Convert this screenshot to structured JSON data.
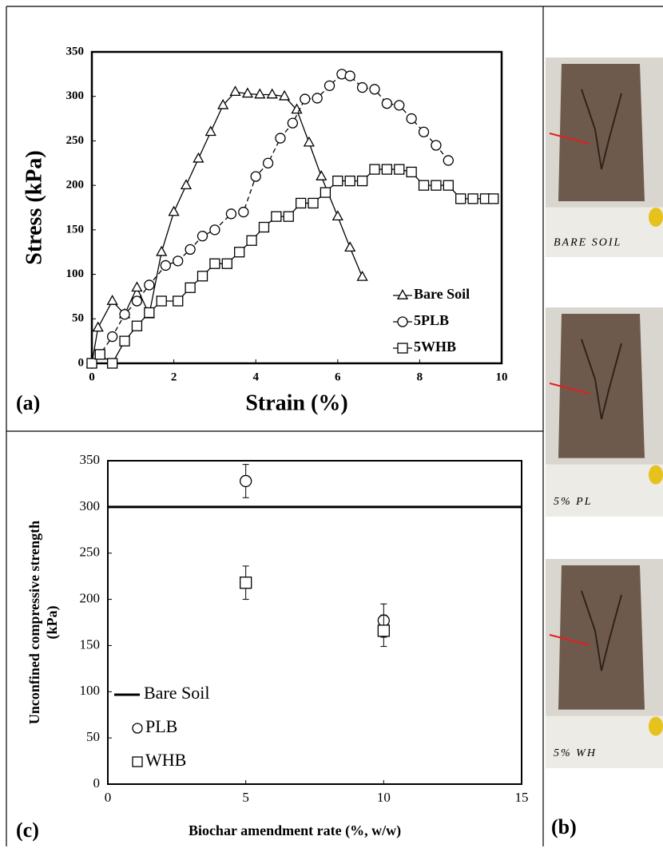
{
  "chart_data": [
    {
      "type": "line",
      "panel_label": "(a)",
      "xlabel": "Strain (%)",
      "ylabel": "Stress (kPa)",
      "xlim": [
        0,
        10
      ],
      "ylim": [
        0,
        350
      ],
      "xticks": [
        0,
        2,
        4,
        6,
        8,
        10
      ],
      "yticks": [
        0,
        50,
        100,
        150,
        200,
        250,
        300,
        350
      ],
      "legend": "lower right",
      "series": [
        {
          "name": "Bare Soil",
          "color": "#000000",
          "marker": "triangle",
          "linestyle": "solid",
          "x": [
            0,
            0.15,
            0.5,
            0.8,
            1.1,
            1.4,
            1.7,
            2,
            2.3,
            2.6,
            2.9,
            3.2,
            3.5,
            3.8,
            4.1,
            4.4,
            4.7,
            5,
            5.3,
            5.6,
            6,
            6.3,
            6.6
          ],
          "values": [
            0,
            40,
            70,
            55,
            85,
            55,
            125,
            170,
            200,
            230,
            260,
            290,
            305,
            303,
            302,
            302,
            300,
            285,
            248,
            210,
            165,
            130,
            97
          ]
        },
        {
          "name": "5PLB",
          "color": "#000000",
          "marker": "circle",
          "linestyle": "dashed",
          "x": [
            0,
            0.2,
            0.5,
            0.8,
            1.1,
            1.4,
            1.8,
            2.1,
            2.4,
            2.7,
            3,
            3.4,
            3.7,
            4,
            4.3,
            4.6,
            4.9,
            5.2,
            5.5,
            5.8,
            6.1,
            6.3,
            6.6,
            6.9,
            7.2,
            7.5,
            7.8,
            8.1,
            8.4,
            8.7
          ],
          "values": [
            0,
            10,
            30,
            55,
            70,
            88,
            110,
            115,
            128,
            143,
            150,
            168,
            170,
            210,
            225,
            253,
            270,
            297,
            298,
            312,
            325,
            323,
            310,
            308,
            292,
            290,
            275,
            260,
            245,
            228
          ]
        },
        {
          "name": "5WHB",
          "color": "#000000",
          "marker": "square",
          "linestyle": "solid",
          "x": [
            0,
            0.2,
            0.5,
            0.8,
            1.1,
            1.4,
            1.7,
            2.1,
            2.4,
            2.7,
            3,
            3.3,
            3.6,
            3.9,
            4.2,
            4.5,
            4.8,
            5.1,
            5.4,
            5.7,
            6,
            6.3,
            6.6,
            6.9,
            7.2,
            7.5,
            7.8,
            8.1,
            8.4,
            8.7,
            9,
            9.3,
            9.6,
            9.8
          ],
          "values": [
            0,
            10,
            0,
            25,
            42,
            57,
            70,
            70,
            85,
            98,
            112,
            112,
            125,
            138,
            153,
            165,
            165,
            180,
            180,
            192,
            205,
            205,
            205,
            218,
            218,
            218,
            215,
            200,
            200,
            200,
            185,
            185,
            185,
            185
          ]
        }
      ]
    },
    {
      "type": "scatter",
      "panel_label": "(c)",
      "xlabel": "Biochar amendment rate (%, w/w)",
      "ylabel": [
        "Unconfined compressive strength",
        "(kPa)"
      ],
      "xlim": [
        0,
        15
      ],
      "ylim": [
        0,
        350
      ],
      "xticks": [
        0,
        5,
        10,
        15
      ],
      "yticks": [
        0,
        50,
        100,
        150,
        200,
        250,
        300,
        350
      ],
      "legend": "lower left",
      "reference_lines": [
        {
          "name": "Bare Soil",
          "value": 300,
          "color": "#000000"
        }
      ],
      "x": [
        5,
        10
      ],
      "series": [
        {
          "name": "PLB",
          "color": "#000000",
          "marker": "circle",
          "values": [
            328,
            177
          ],
          "errors": [
            18,
            18
          ]
        },
        {
          "name": "WHB",
          "color": "#000000",
          "marker": "square",
          "values": [
            218,
            166
          ],
          "errors": [
            18,
            17
          ]
        }
      ]
    }
  ],
  "photos": {
    "panel_label": "(b)",
    "captions": [
      "BARE SOIL",
      "5% PL",
      "5% WH"
    ]
  }
}
